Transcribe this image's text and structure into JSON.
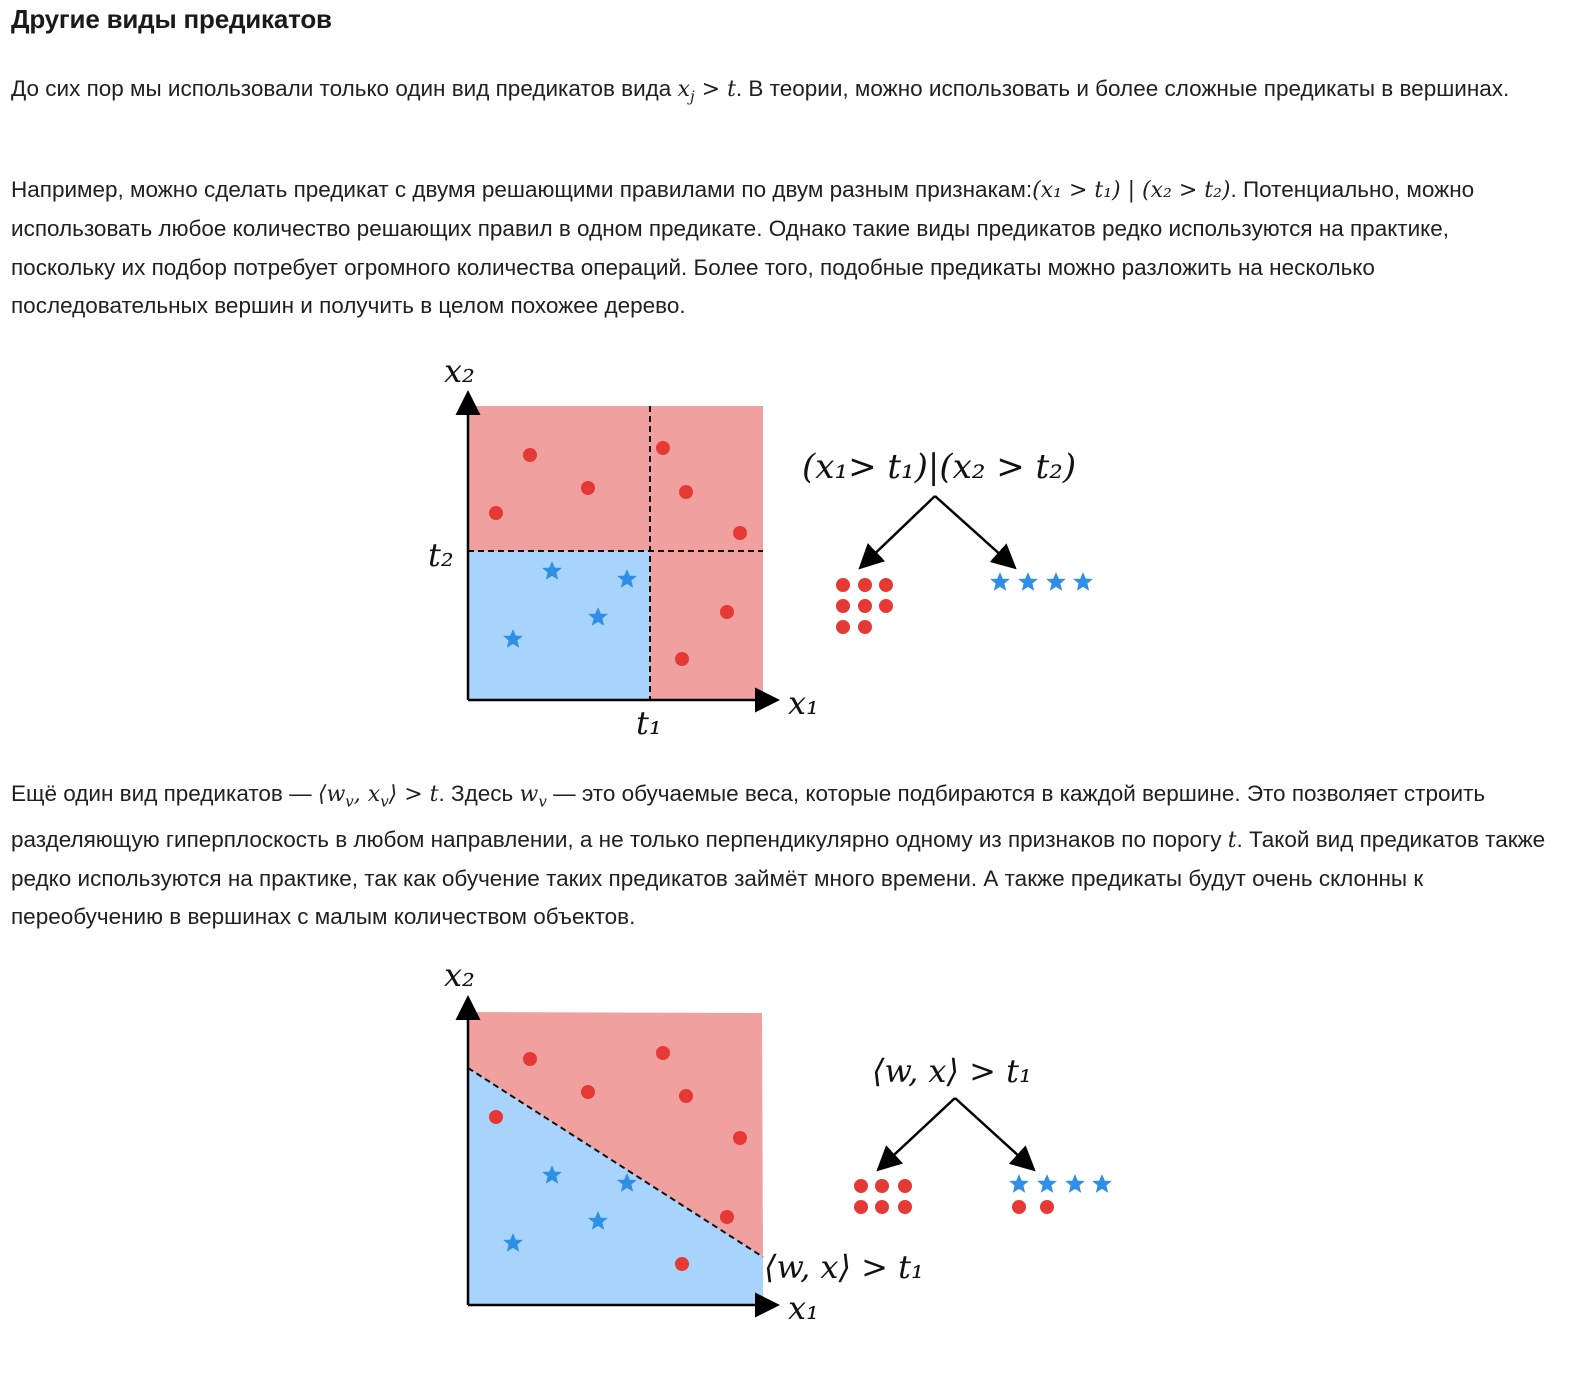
{
  "heading": "Другие виды предикатов",
  "para1": {
    "a": "До сих пор мы использовали только один вид предикатов вида ",
    "math": "x",
    "math_sub": "j",
    "math_b": " > t",
    "b": ". В теории, можно использовать и более сложные предикаты в вершинах."
  },
  "para2": {
    "a": "Например, можно сделать предикат с двумя решающими правилами по двум разным признакам:",
    "math": "(x₁ > t₁) | (x₂ > t₂)",
    "b": ". Потенциально, можно использовать любое количество решающих правил в одном предикате. Однако такие виды предикатов редко используются на практике, поскольку их подбор потребует огромного количества операций. Более того, подобные предикаты можно разложить на несколько последовательных вершин и получить в целом похожее дерево."
  },
  "para3": {
    "a": "Ещё один вид предикатов — ",
    "math1": "⟨w",
    "math1_sub": "v",
    "math1b": ", x",
    "math1b_sub": "v",
    "math1c": "⟩ > t",
    "b": ". Здесь ",
    "math2": "w",
    "math2_sub": "v",
    "c": " — это обучаемые веса, которые подбираются в каждой вершине. Это позволяет строить разделяющую гиперплоскость в любом направлении, а не только перпендикулярно одному из признаков по порогу ",
    "math3": "t",
    "d": ". Такой вид предикатов также редко используются на практике, так как обучение таких предикатов займёт много времени. А также предикаты будут очень склонны к переобучению в вершинах с малым количеством объектов."
  },
  "figure1": {
    "y_axis": "x₂",
    "x_axis": "x₁",
    "t1": "t₁",
    "t2": "t₂",
    "predicate": "(x₁> t₁)|(x₂ > t₂)",
    "leaf_left_dots": 8,
    "leaf_right_stars": 4,
    "red_points": 8,
    "blue_stars": 4,
    "colors": {
      "red_region": "#f0a09e",
      "blue_region": "#a8d3fb",
      "dot": "#e53935",
      "star": "#2f8fe6"
    }
  },
  "figure2": {
    "y_axis": "x₂",
    "x_axis": "x₁",
    "predicate": "⟨w, x⟩ > t₁",
    "boundary_label": "⟨w, x⟩ > t₁",
    "leaf_left_dots": 6,
    "leaf_right_stars": 4,
    "leaf_right_dots": 2,
    "red_points": 8,
    "blue_stars": 4,
    "colors": {
      "red_region": "#f0a09e",
      "blue_region": "#a8d3fb",
      "dot": "#e53935",
      "star": "#2f8fe6"
    }
  }
}
